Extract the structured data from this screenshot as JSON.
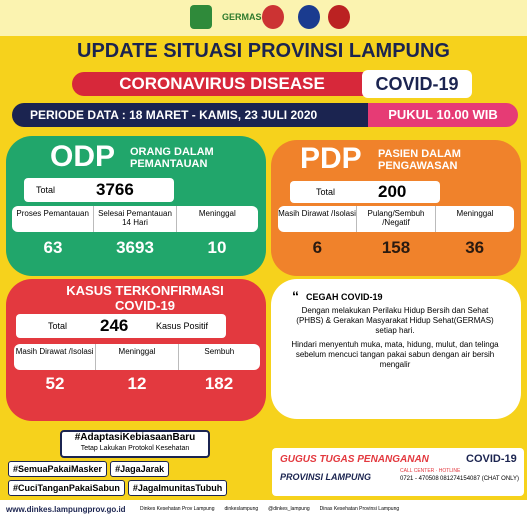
{
  "header": {
    "logo_text": "GERMAS",
    "title": "UPDATE SITUASI PROVINSI LAMPUNG",
    "disease": "CORONAVIRUS DISEASE",
    "covid": "COVID-19",
    "period": "PERIODE DATA : 18 MARET - KAMIS, 23 JULI 2020",
    "time": "PUKUL 10.00 WIB"
  },
  "odp": {
    "abbr": "ODP",
    "name": "ORANG DALAM PEMANTAUAN",
    "total_label": "Total",
    "total": 3766,
    "stats": [
      {
        "label": "Proses Pemantauan",
        "value": 63
      },
      {
        "label": "Selesai Pemantauan 14 Hari",
        "value": 3693
      },
      {
        "label": "Meninggal",
        "value": 10
      }
    ]
  },
  "pdp": {
    "abbr": "PDP",
    "name": "PASIEN DALAM PENGAWASAN",
    "total_label": "Total",
    "total": 200,
    "stats": [
      {
        "label": "Masih Dirawat /Isolasi",
        "value": 6
      },
      {
        "label": "Pulang/Sembuh /Negatif",
        "value": 158
      },
      {
        "label": "Meninggal",
        "value": 36
      }
    ]
  },
  "confirmed": {
    "title": "KASUS TERKONFIRMASI COVID-19",
    "total_label": "Total",
    "total": 246,
    "total_note": "Kasus Positif",
    "stats": [
      {
        "label": "Masih Dirawat /Isolasi",
        "value": 52
      },
      {
        "label": "Meninggal",
        "value": 12
      },
      {
        "label": "Sembuh",
        "value": 182
      }
    ]
  },
  "prevention": {
    "title": "CEGAH COVID-19",
    "paragraphs": [
      "Dengan melakukan Perilaku Hidup Bersih dan Sehat (PHBS) & Gerakan Masyarakat Hidup Sehat(GERMAS) setiap hari.",
      "Hindari menyentuh muka, mata, hidung, mulut, dan telinga sebelum mencuci tangan pakai sabun dengan air bersih mengalir"
    ]
  },
  "hashtags": {
    "main": "#AdaptasiKebiasaanBaru",
    "sub": "Tetap Lakukan Protokol Kesehatan",
    "tags": [
      "#SemuaPakaiMasker",
      "#JagaJarak",
      "#CuciTanganPakaiSabun",
      "#JagaImunitasTubuh"
    ]
  },
  "task_force": {
    "title": "GUGUS TUGAS PENANGANAN",
    "covid": "COVID-19",
    "province": "PROVINSI LAMPUNG",
    "hotline_label": "CALL CENTER · HOTLINE",
    "phone": "0721 - 470508",
    "chat": "081274154087 (CHAT ONLY)"
  },
  "footer": {
    "website": "www.dinkes.lampungprov.go.id",
    "links": [
      "Dinkes Kesehatan Prov Lampung",
      "dinkeslampung",
      "@dinkes_lampung",
      "Dinas Kesehatan Provinsi Lampung"
    ]
  }
}
